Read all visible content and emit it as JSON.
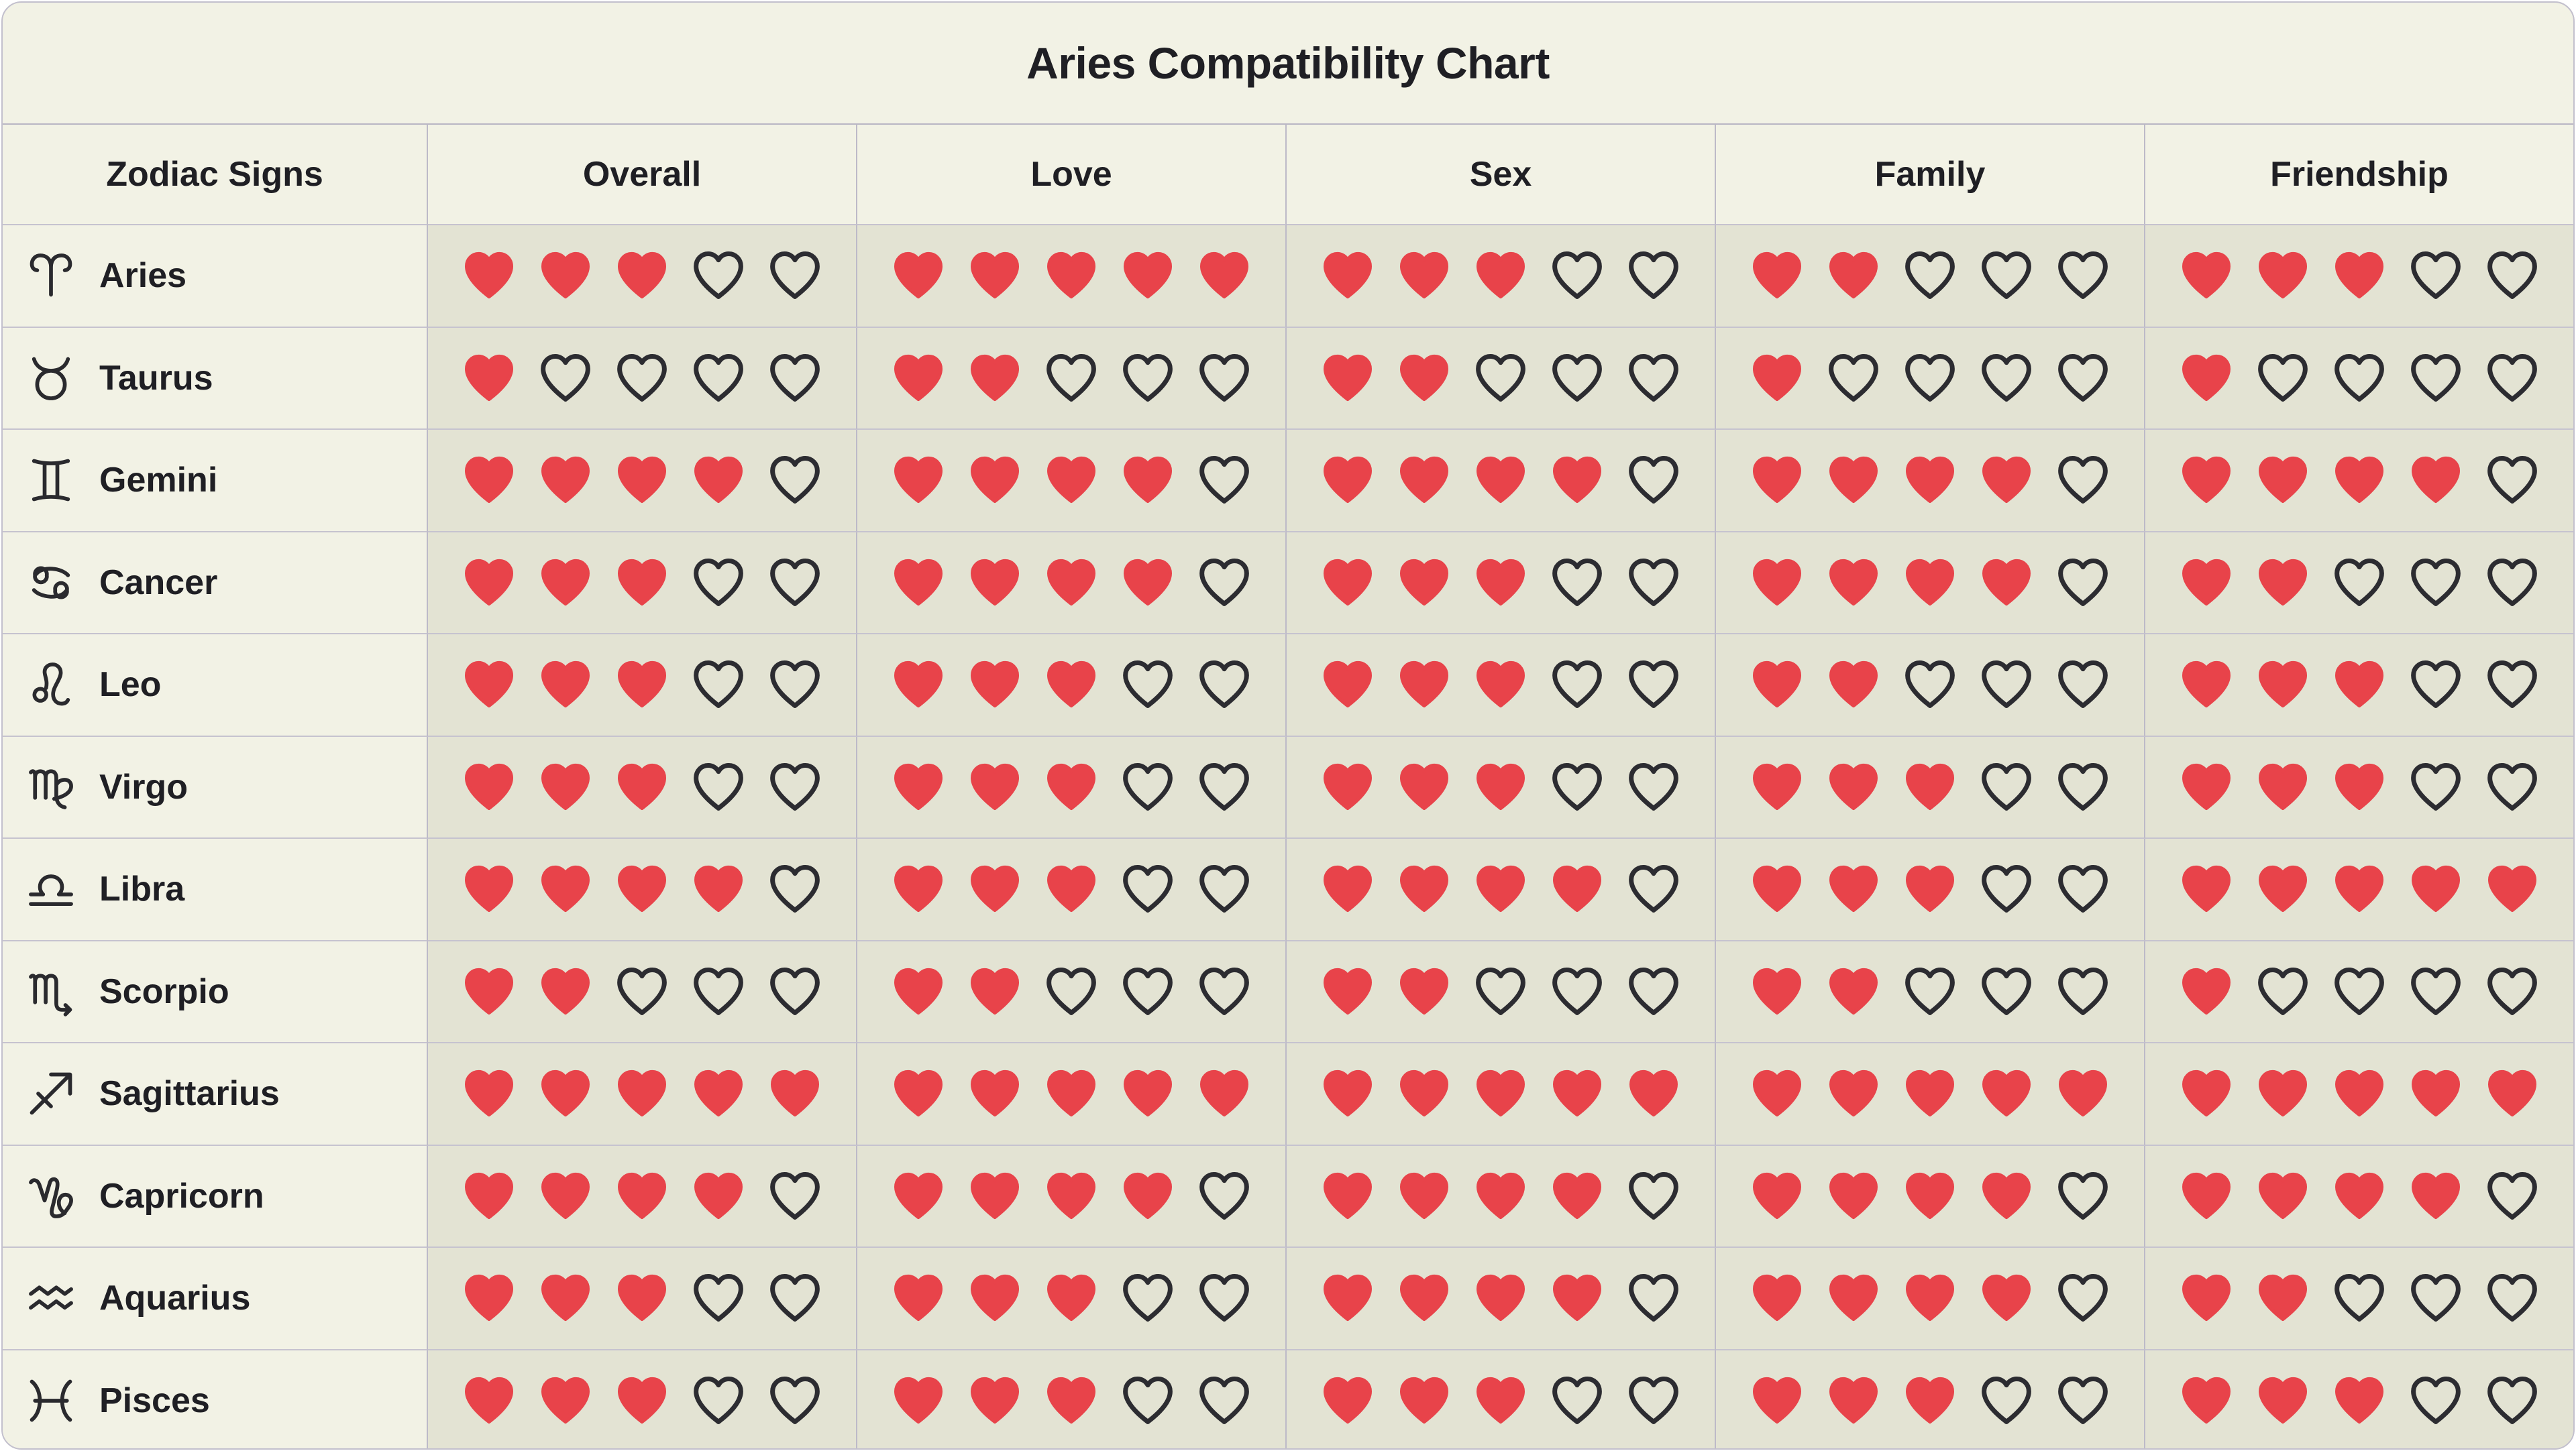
{
  "title": "Aries Compatibility Chart",
  "corner_header": "Zodiac Signs",
  "columns": [
    "Overall",
    "Love",
    "Sex",
    "Family",
    "Friendship"
  ],
  "max_hearts": 5,
  "colors": {
    "filled_heart": "#e8434a",
    "empty_heart_outline": "#2c2c31",
    "header_background": "#f2f2e5",
    "rating_background": "#e3e3d3"
  },
  "rows": [
    {
      "sign": "Aries",
      "icon": "aries-icon",
      "ratings": [
        3,
        5,
        3,
        2,
        3
      ]
    },
    {
      "sign": "Taurus",
      "icon": "taurus-icon",
      "ratings": [
        1,
        2,
        2,
        1,
        1
      ]
    },
    {
      "sign": "Gemini",
      "icon": "gemini-icon",
      "ratings": [
        4,
        4,
        4,
        4,
        4
      ]
    },
    {
      "sign": "Cancer",
      "icon": "cancer-icon",
      "ratings": [
        3,
        4,
        3,
        4,
        2
      ]
    },
    {
      "sign": "Leo",
      "icon": "leo-icon",
      "ratings": [
        3,
        3,
        3,
        2,
        3
      ]
    },
    {
      "sign": "Virgo",
      "icon": "virgo-icon",
      "ratings": [
        3,
        3,
        3,
        3,
        3
      ]
    },
    {
      "sign": "Libra",
      "icon": "libra-icon",
      "ratings": [
        4,
        3,
        4,
        3,
        5
      ]
    },
    {
      "sign": "Scorpio",
      "icon": "scorpio-icon",
      "ratings": [
        2,
        2,
        2,
        2,
        1
      ]
    },
    {
      "sign": "Sagittarius",
      "icon": "sagittarius-icon",
      "ratings": [
        5,
        5,
        5,
        5,
        5
      ]
    },
    {
      "sign": "Capricorn",
      "icon": "capricorn-icon",
      "ratings": [
        4,
        4,
        4,
        4,
        4
      ]
    },
    {
      "sign": "Aquarius",
      "icon": "aquarius-icon",
      "ratings": [
        3,
        3,
        4,
        4,
        2
      ]
    },
    {
      "sign": "Pisces",
      "icon": "pisces-icon",
      "ratings": [
        3,
        3,
        3,
        3,
        3
      ]
    }
  ]
}
